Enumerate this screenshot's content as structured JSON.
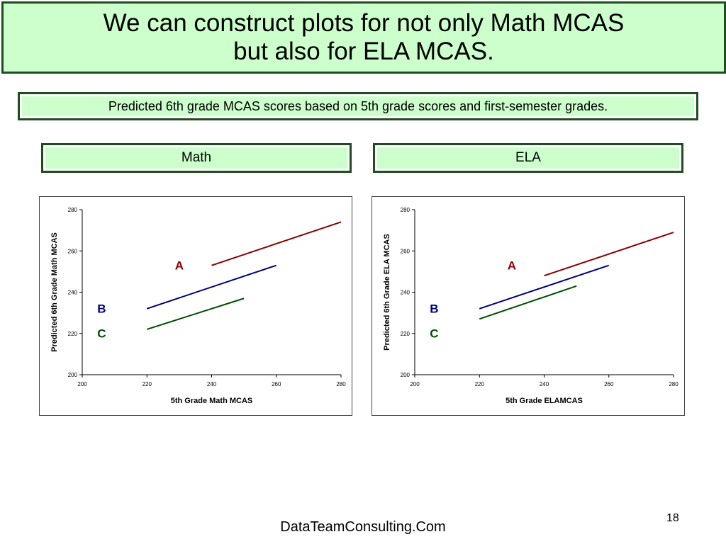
{
  "title": "We can construct plots for not only Math MCAS\nbut also for ELA MCAS.",
  "subtitle": "Predicted 6th grade MCAS scores based on 5th grade scores and first-semester grades.",
  "panel_labels": {
    "math": "Math",
    "ela": "ELA"
  },
  "footer": "DataTeamConsulting.Com",
  "page_number": "18",
  "colors": {
    "A": "#8b0000",
    "B": "#000080",
    "C": "#004d00",
    "box_fill": "#ccffcc",
    "box_border": "#1f4d1f"
  },
  "chart_data": [
    {
      "type": "line",
      "title": "",
      "xlabel": "5th Grade Math MCAS",
      "ylabel": "Predicted 6th Grade Math MCAS",
      "xlim": [
        200,
        280
      ],
      "ylim": [
        200,
        280
      ],
      "xticks": [
        200,
        220,
        240,
        260,
        280
      ],
      "yticks": [
        200,
        220,
        240,
        260,
        280
      ],
      "series": [
        {
          "name": "A",
          "color": "#8b0000",
          "points": [
            [
              240,
              253
            ],
            [
              280,
              274
            ]
          ]
        },
        {
          "name": "B",
          "color": "#000080",
          "points": [
            [
              220,
              232
            ],
            [
              260,
              253
            ]
          ]
        },
        {
          "name": "C",
          "color": "#004d00",
          "points": [
            [
              220,
              222
            ],
            [
              250,
              237
            ]
          ]
        }
      ],
      "labels": [
        {
          "text": "A",
          "color": "#8b0000",
          "x": 230,
          "y": 251
        },
        {
          "text": "B",
          "color": "#000080",
          "x": 206,
          "y": 230
        },
        {
          "text": "C",
          "color": "#004d00",
          "x": 206,
          "y": 218
        }
      ]
    },
    {
      "type": "line",
      "title": "",
      "xlabel": "5th Grade ELAMCAS",
      "ylabel": "Predicted 6th Grade ELA MCAS",
      "xlim": [
        200,
        280
      ],
      "ylim": [
        200,
        280
      ],
      "xticks": [
        200,
        220,
        240,
        260,
        280
      ],
      "yticks": [
        200,
        220,
        240,
        260,
        280
      ],
      "series": [
        {
          "name": "A",
          "color": "#8b0000",
          "points": [
            [
              240,
              248
            ],
            [
              280,
              269
            ]
          ]
        },
        {
          "name": "B",
          "color": "#000080",
          "points": [
            [
              220,
              232
            ],
            [
              260,
              253
            ]
          ]
        },
        {
          "name": "C",
          "color": "#004d00",
          "points": [
            [
              220,
              227
            ],
            [
              250,
              243
            ]
          ]
        }
      ],
      "labels": [
        {
          "text": "A",
          "color": "#8b0000",
          "x": 230,
          "y": 251
        },
        {
          "text": "B",
          "color": "#000080",
          "x": 206,
          "y": 230
        },
        {
          "text": "C",
          "color": "#004d00",
          "x": 206,
          "y": 218
        }
      ]
    }
  ]
}
